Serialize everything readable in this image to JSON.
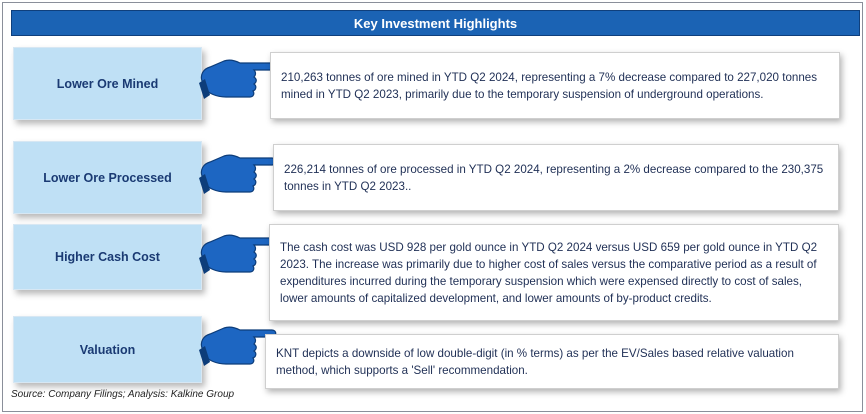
{
  "title": "Key Investment Highlights",
  "highlights": [
    {
      "label": "Lower Ore Mined",
      "text": "210,263 tonnes of ore mined in YTD Q2 2024, representing a 7% decrease compared to 227,020 tonnes mined in YTD Q2 2023, primarily due to the temporary suspension of underground operations."
    },
    {
      "label": "Lower Ore Processed",
      "text": "226,214 tonnes of ore processed in YTD Q2 2024, representing a 2% decrease compared to the 230,375 tonnes in YTD Q2 2023.."
    },
    {
      "label": "Higher Cash Cost",
      "text": "The cash cost was USD 928 per gold ounce in YTD Q2 2024 versus USD 659 per gold ounce in YTD Q2 2023. The increase was primarily due to higher cost of sales versus the comparative period as a result of expenditures incurred during the temporary suspension which were expensed directly to cost of sales, lower amounts of capitalized development, and lower amounts of by-product credits."
    },
    {
      "label": "Valuation",
      "text": "KNT depicts a downside of low double-digit (in % terms) as per the EV/Sales based relative valuation method, which supports a 'Sell' recommendation."
    }
  ],
  "source": "Source: Company Filings; Analysis: Kalkine Group",
  "colors": {
    "banner": "#1b63b4",
    "label_bg": "#bfe0f5",
    "label_text": "#1a3a73",
    "hand": "#1d66c2",
    "body_text": "#1f2f55"
  },
  "icons": [
    "pointing-hand-icon"
  ]
}
